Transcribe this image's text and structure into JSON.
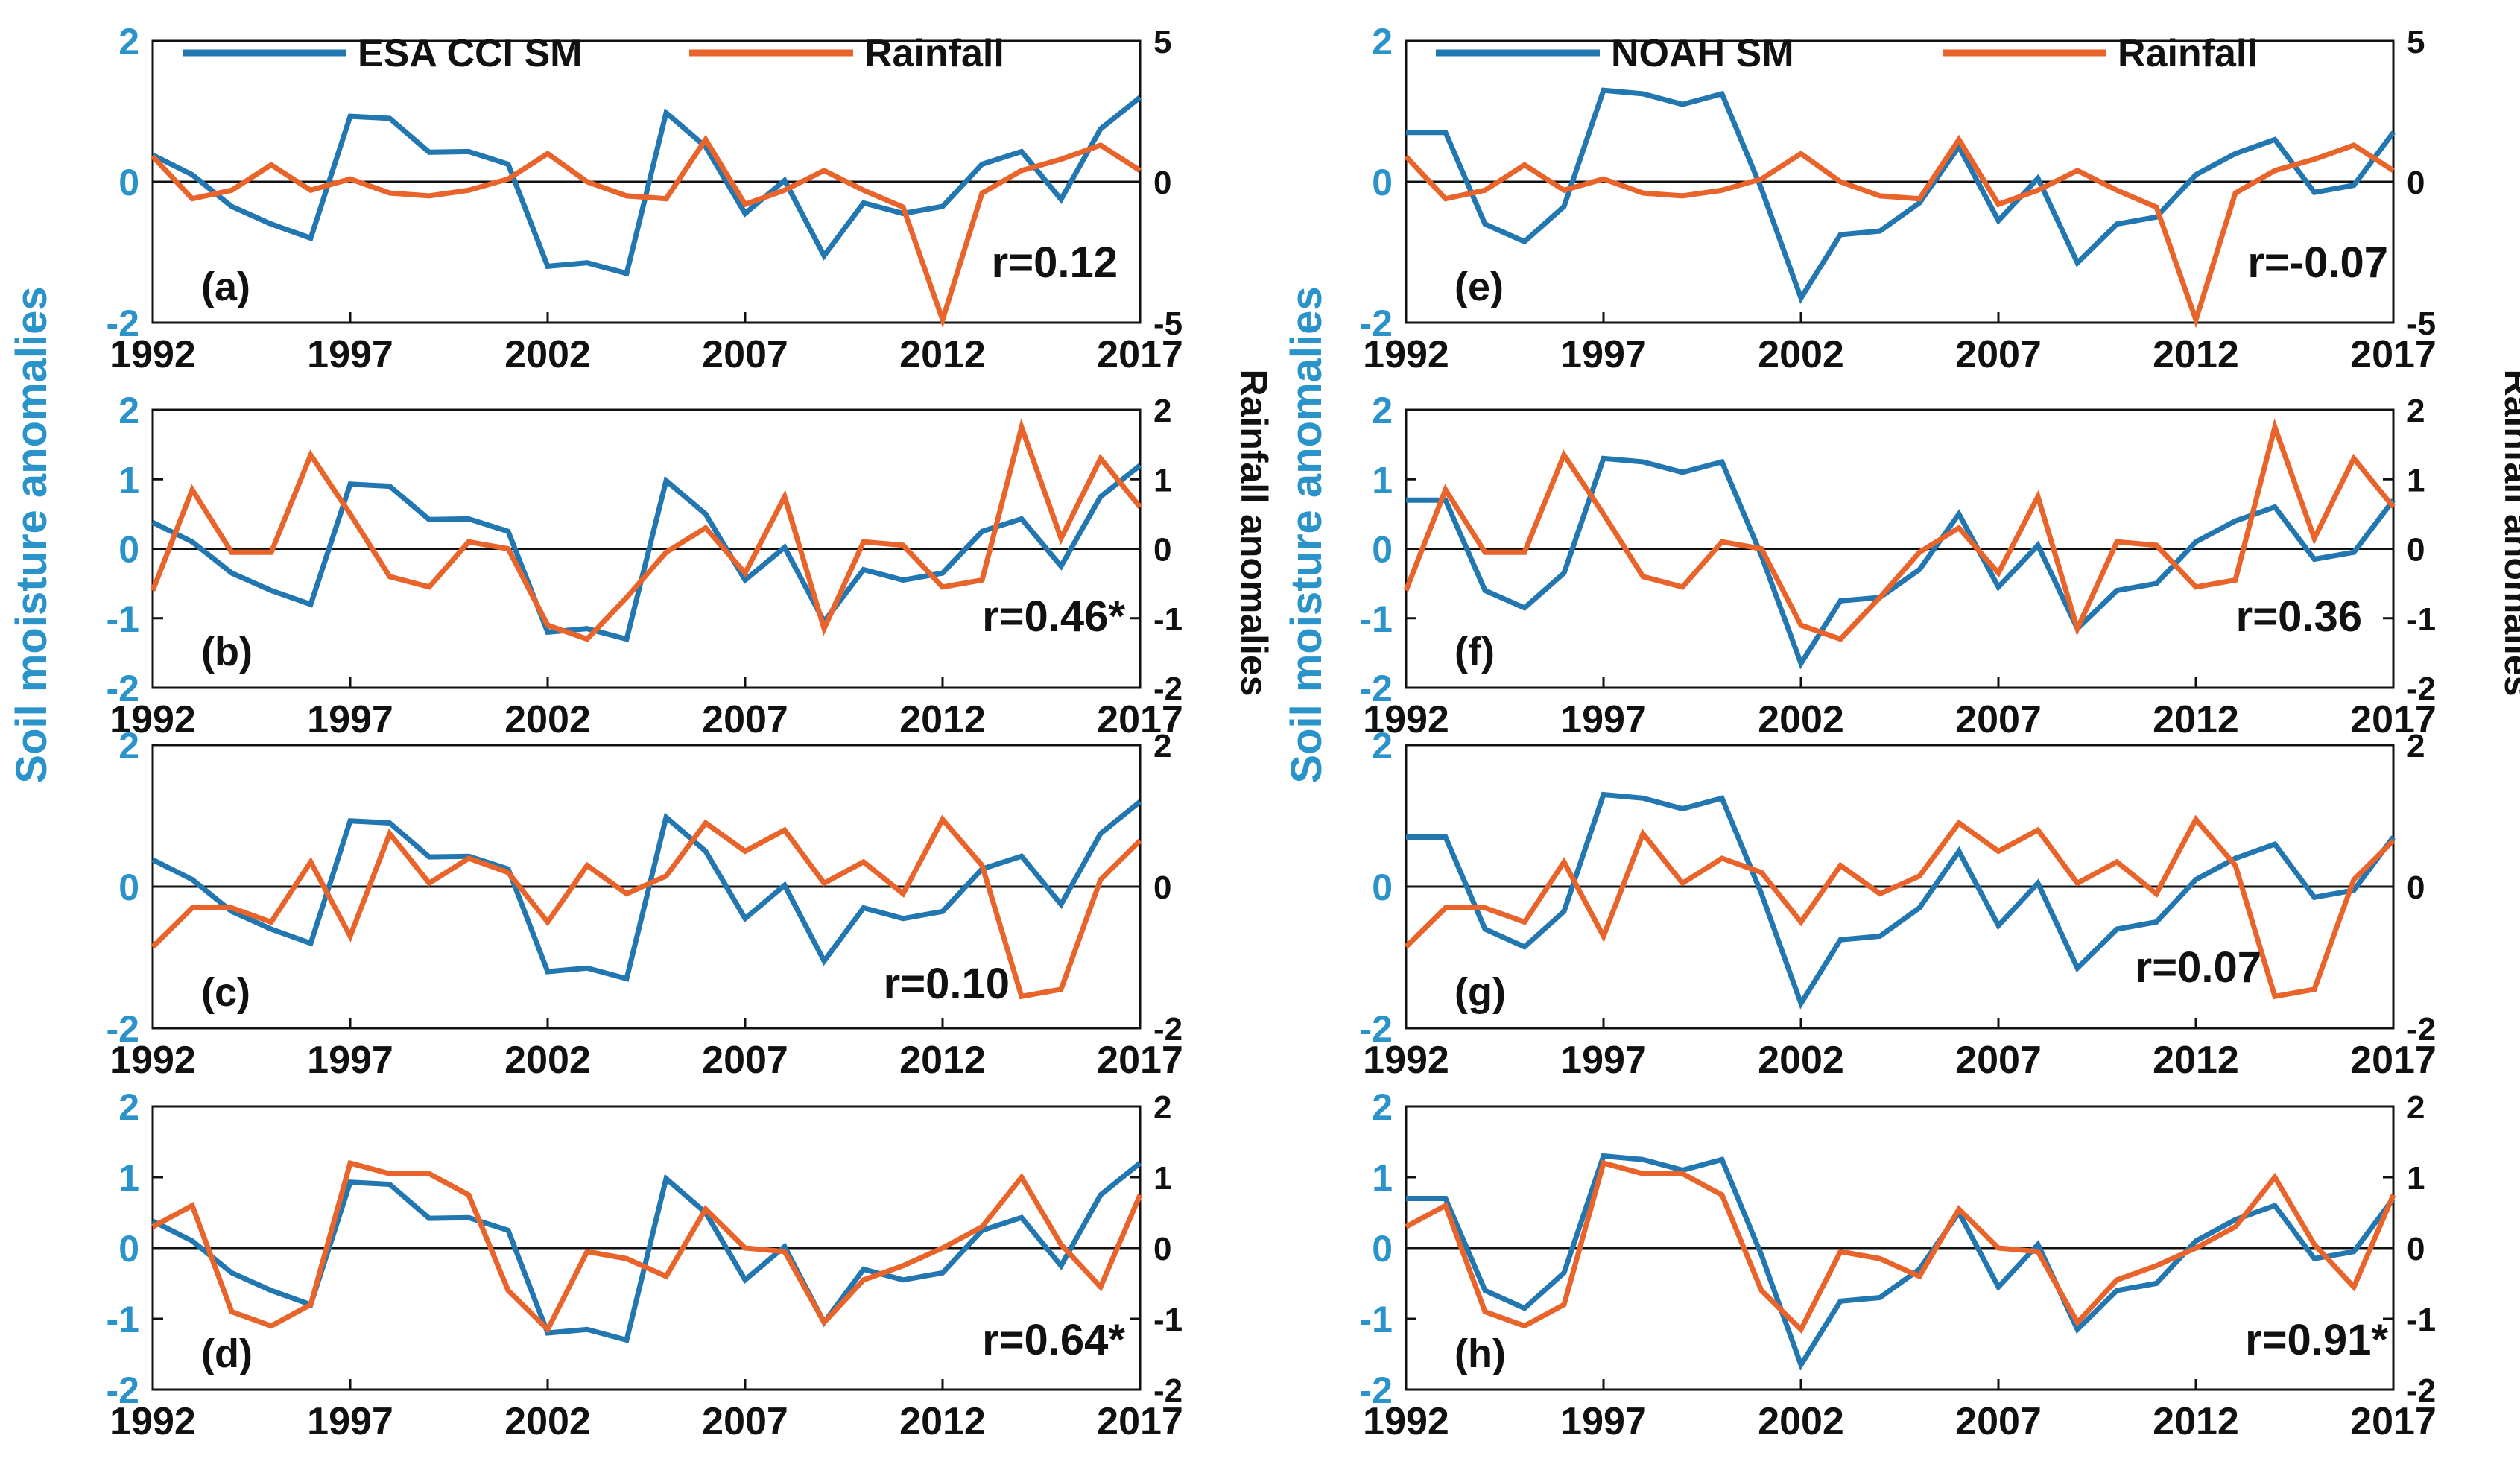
{
  "figure": {
    "left_ylabel": "Soil moisture anomalies",
    "right_ylabel": "Rainfall anomalies",
    "left_color": "#2a93c9",
    "rain_color": "#e8642a",
    "sm_color": "#2277b0"
  },
  "chart_data": [
    {
      "type": "line",
      "panel": "(a)",
      "column": "left",
      "legend": [
        "ESA CCI SM",
        "Rainfall"
      ],
      "x": [
        1992,
        1993,
        1994,
        1995,
        1996,
        1997,
        1998,
        1999,
        2000,
        2001,
        2002,
        2003,
        2004,
        2005,
        2006,
        2007,
        2008,
        2009,
        2010,
        2011,
        2012,
        2013,
        2014,
        2015,
        2016,
        2017
      ],
      "xticks": [
        1992,
        1997,
        2002,
        2007,
        2012,
        2017
      ],
      "ylim": [
        -2,
        2
      ],
      "yticks": [
        -2,
        0,
        2
      ],
      "y2lim": [
        -5,
        5
      ],
      "y2ticks": [
        -5,
        0,
        5
      ],
      "series": [
        {
          "name": "ESA CCI SM",
          "axis": "left",
          "values": [
            0.38,
            0.1,
            -0.35,
            -0.6,
            -0.8,
            0.93,
            0.9,
            0.42,
            0.43,
            0.25,
            -1.2,
            -1.15,
            -1.3,
            0.98,
            0.5,
            -0.45,
            0.02,
            -1.05,
            -0.3,
            -0.45,
            -0.35,
            0.25,
            0.43,
            -0.25,
            0.75,
            1.2
          ]
        },
        {
          "name": "Rainfall",
          "axis": "right",
          "values": [
            0.9,
            -0.6,
            -0.3,
            0.6,
            -0.3,
            0.1,
            -0.4,
            -0.5,
            -0.3,
            0.1,
            1.0,
            0.0,
            -0.5,
            -0.6,
            1.5,
            -0.8,
            -0.3,
            0.4,
            -0.3,
            -0.9,
            -4.9,
            -0.4,
            0.4,
            0.8,
            1.3,
            0.4
          ]
        }
      ],
      "annotation": "r=0.12"
    },
    {
      "type": "line",
      "panel": "(b)",
      "column": "left",
      "x": [
        1992,
        1993,
        1994,
        1995,
        1996,
        1997,
        1998,
        1999,
        2000,
        2001,
        2002,
        2003,
        2004,
        2005,
        2006,
        2007,
        2008,
        2009,
        2010,
        2011,
        2012,
        2013,
        2014,
        2015,
        2016,
        2017
      ],
      "xticks": [
        1992,
        1997,
        2002,
        2007,
        2012,
        2017
      ],
      "ylim": [
        -2,
        2
      ],
      "yticks": [
        -2,
        -1,
        0,
        1,
        2
      ],
      "y2lim": [
        -2,
        2
      ],
      "y2ticks": [
        -2,
        -1,
        0,
        1,
        2
      ],
      "series": [
        {
          "name": "ESA CCI SM",
          "axis": "left",
          "values": [
            0.38,
            0.1,
            -0.35,
            -0.6,
            -0.8,
            0.93,
            0.9,
            0.42,
            0.43,
            0.25,
            -1.2,
            -1.15,
            -1.3,
            0.98,
            0.5,
            -0.45,
            0.02,
            -1.05,
            -0.3,
            -0.45,
            -0.35,
            0.25,
            0.43,
            -0.25,
            0.75,
            1.2
          ]
        },
        {
          "name": "Rainfall",
          "axis": "right",
          "values": [
            -0.6,
            0.85,
            -0.05,
            -0.05,
            1.35,
            0.5,
            -0.4,
            -0.55,
            0.1,
            0.0,
            -1.1,
            -1.3,
            -0.7,
            -0.05,
            0.3,
            -0.35,
            0.75,
            -1.15,
            0.1,
            0.05,
            -0.55,
            -0.45,
            1.75,
            0.15,
            1.3,
            0.6
          ]
        }
      ],
      "annotation": "r=0.46*"
    },
    {
      "type": "line",
      "panel": "(c)",
      "column": "left",
      "x": [
        1992,
        1993,
        1994,
        1995,
        1996,
        1997,
        1998,
        1999,
        2000,
        2001,
        2002,
        2003,
        2004,
        2005,
        2006,
        2007,
        2008,
        2009,
        2010,
        2011,
        2012,
        2013,
        2014,
        2015,
        2016,
        2017
      ],
      "xticks": [
        1992,
        1997,
        2002,
        2007,
        2012,
        2017
      ],
      "ylim": [
        -2,
        2
      ],
      "yticks": [
        -2,
        0,
        2
      ],
      "y2lim": [
        -2,
        2
      ],
      "y2ticks": [
        -2,
        0,
        2
      ],
      "series": [
        {
          "name": "ESA CCI SM",
          "axis": "left",
          "values": [
            0.38,
            0.1,
            -0.35,
            -0.6,
            -0.8,
            0.93,
            0.9,
            0.42,
            0.43,
            0.25,
            -1.2,
            -1.15,
            -1.3,
            0.98,
            0.5,
            -0.45,
            0.02,
            -1.05,
            -0.3,
            -0.45,
            -0.35,
            0.25,
            0.43,
            -0.25,
            0.75,
            1.2
          ]
        },
        {
          "name": "Rainfall",
          "axis": "right",
          "values": [
            -0.85,
            -0.3,
            -0.3,
            -0.5,
            0.35,
            -0.7,
            0.75,
            0.05,
            0.4,
            0.2,
            -0.5,
            0.3,
            -0.1,
            0.15,
            0.9,
            0.5,
            0.8,
            0.05,
            0.35,
            -0.1,
            0.95,
            0.3,
            -1.55,
            -1.45,
            0.1,
            0.65
          ]
        }
      ],
      "annotation": "r=0.10"
    },
    {
      "type": "line",
      "panel": "(d)",
      "column": "left",
      "x": [
        1992,
        1993,
        1994,
        1995,
        1996,
        1997,
        1998,
        1999,
        2000,
        2001,
        2002,
        2003,
        2004,
        2005,
        2006,
        2007,
        2008,
        2009,
        2010,
        2011,
        2012,
        2013,
        2014,
        2015,
        2016,
        2017
      ],
      "xticks": [
        1992,
        1997,
        2002,
        2007,
        2012,
        2017
      ],
      "ylim": [
        -2,
        2
      ],
      "yticks": [
        -2,
        -1,
        0,
        1,
        2
      ],
      "y2lim": [
        -2,
        2
      ],
      "y2ticks": [
        -2,
        -1,
        0,
        1,
        2
      ],
      "series": [
        {
          "name": "ESA CCI SM",
          "axis": "left",
          "values": [
            0.38,
            0.1,
            -0.35,
            -0.6,
            -0.8,
            0.93,
            0.9,
            0.42,
            0.43,
            0.25,
            -1.2,
            -1.15,
            -1.3,
            0.98,
            0.5,
            -0.45,
            0.02,
            -1.05,
            -0.3,
            -0.45,
            -0.35,
            0.25,
            0.43,
            -0.25,
            0.75,
            1.2
          ]
        },
        {
          "name": "Rainfall",
          "axis": "right",
          "values": [
            0.3,
            0.6,
            -0.9,
            -1.1,
            -0.8,
            1.2,
            1.05,
            1.05,
            0.75,
            -0.6,
            -1.15,
            -0.05,
            -0.15,
            -0.4,
            0.55,
            0.0,
            -0.05,
            -1.05,
            -0.45,
            -0.25,
            0.0,
            0.3,
            1.0,
            0.05,
            -0.55,
            0.75
          ]
        }
      ],
      "annotation": "r=0.64*"
    },
    {
      "type": "line",
      "panel": "(e)",
      "column": "right",
      "legend": [
        "NOAH SM",
        "Rainfall"
      ],
      "x": [
        1992,
        1993,
        1994,
        1995,
        1996,
        1997,
        1998,
        1999,
        2000,
        2001,
        2002,
        2003,
        2004,
        2005,
        2006,
        2007,
        2008,
        2009,
        2010,
        2011,
        2012,
        2013,
        2014,
        2015,
        2016,
        2017
      ],
      "xticks": [
        1992,
        1997,
        2002,
        2007,
        2012,
        2017
      ],
      "ylim": [
        -2,
        2
      ],
      "yticks": [
        -2,
        0,
        2
      ],
      "y2lim": [
        -5,
        5
      ],
      "y2ticks": [
        -5,
        0,
        5
      ],
      "series": [
        {
          "name": "NOAH SM",
          "axis": "left",
          "values": [
            0.7,
            0.7,
            -0.6,
            -0.85,
            -0.35,
            1.3,
            1.25,
            1.1,
            1.25,
            -0.1,
            -1.65,
            -0.75,
            -0.7,
            -0.3,
            0.5,
            -0.55,
            0.05,
            -1.15,
            -0.6,
            -0.5,
            0.1,
            0.4,
            0.6,
            -0.15,
            -0.05,
            0.7
          ]
        },
        {
          "name": "Rainfall",
          "axis": "right",
          "values": [
            0.9,
            -0.6,
            -0.3,
            0.6,
            -0.3,
            0.1,
            -0.4,
            -0.5,
            -0.3,
            0.1,
            1.0,
            0.0,
            -0.5,
            -0.6,
            1.5,
            -0.8,
            -0.3,
            0.4,
            -0.3,
            -0.9,
            -4.9,
            -0.4,
            0.4,
            0.8,
            1.3,
            0.4
          ]
        }
      ],
      "annotation": "r=-0.07"
    },
    {
      "type": "line",
      "panel": "(f)",
      "column": "right",
      "x": [
        1992,
        1993,
        1994,
        1995,
        1996,
        1997,
        1998,
        1999,
        2000,
        2001,
        2002,
        2003,
        2004,
        2005,
        2006,
        2007,
        2008,
        2009,
        2010,
        2011,
        2012,
        2013,
        2014,
        2015,
        2016,
        2017
      ],
      "xticks": [
        1992,
        1997,
        2002,
        2007,
        2012,
        2017
      ],
      "ylim": [
        -2,
        2
      ],
      "yticks": [
        -2,
        -1,
        0,
        1,
        2
      ],
      "y2lim": [
        -2,
        2
      ],
      "y2ticks": [
        -2,
        -1,
        0,
        1,
        2
      ],
      "series": [
        {
          "name": "NOAH SM",
          "axis": "left",
          "values": [
            0.7,
            0.7,
            -0.6,
            -0.85,
            -0.35,
            1.3,
            1.25,
            1.1,
            1.25,
            -0.1,
            -1.65,
            -0.75,
            -0.7,
            -0.3,
            0.5,
            -0.55,
            0.05,
            -1.15,
            -0.6,
            -0.5,
            0.1,
            0.4,
            0.6,
            -0.15,
            -0.05,
            0.7
          ]
        },
        {
          "name": "Rainfall",
          "axis": "right",
          "values": [
            -0.6,
            0.85,
            -0.05,
            -0.05,
            1.35,
            0.5,
            -0.4,
            -0.55,
            0.1,
            0.0,
            -1.1,
            -1.3,
            -0.7,
            -0.05,
            0.3,
            -0.35,
            0.75,
            -1.15,
            0.1,
            0.05,
            -0.55,
            -0.45,
            1.75,
            0.15,
            1.3,
            0.6
          ]
        }
      ],
      "annotation": "r=0.36"
    },
    {
      "type": "line",
      "panel": "(g)",
      "column": "right",
      "x": [
        1992,
        1993,
        1994,
        1995,
        1996,
        1997,
        1998,
        1999,
        2000,
        2001,
        2002,
        2003,
        2004,
        2005,
        2006,
        2007,
        2008,
        2009,
        2010,
        2011,
        2012,
        2013,
        2014,
        2015,
        2016,
        2017
      ],
      "xticks": [
        1992,
        1997,
        2002,
        2007,
        2012,
        2017
      ],
      "ylim": [
        -2,
        2
      ],
      "yticks": [
        -2,
        0,
        2
      ],
      "y2lim": [
        -2,
        2
      ],
      "y2ticks": [
        -2,
        0,
        2
      ],
      "series": [
        {
          "name": "NOAH SM",
          "axis": "left",
          "values": [
            0.7,
            0.7,
            -0.6,
            -0.85,
            -0.35,
            1.3,
            1.25,
            1.1,
            1.25,
            -0.1,
            -1.65,
            -0.75,
            -0.7,
            -0.3,
            0.5,
            -0.55,
            0.05,
            -1.15,
            -0.6,
            -0.5,
            0.1,
            0.4,
            0.6,
            -0.15,
            -0.05,
            0.7
          ]
        },
        {
          "name": "Rainfall",
          "axis": "right",
          "values": [
            -0.85,
            -0.3,
            -0.3,
            -0.5,
            0.35,
            -0.7,
            0.75,
            0.05,
            0.4,
            0.2,
            -0.5,
            0.3,
            -0.1,
            0.15,
            0.9,
            0.5,
            0.8,
            0.05,
            0.35,
            -0.1,
            0.95,
            0.3,
            -1.55,
            -1.45,
            0.1,
            0.65
          ]
        }
      ],
      "annotation": "r=0.07"
    },
    {
      "type": "line",
      "panel": "(h)",
      "column": "right",
      "x": [
        1992,
        1993,
        1994,
        1995,
        1996,
        1997,
        1998,
        1999,
        2000,
        2001,
        2002,
        2003,
        2004,
        2005,
        2006,
        2007,
        2008,
        2009,
        2010,
        2011,
        2012,
        2013,
        2014,
        2015,
        2016,
        2017
      ],
      "xticks": [
        1992,
        1997,
        2002,
        2007,
        2012,
        2017
      ],
      "ylim": [
        -2,
        2
      ],
      "yticks": [
        -2,
        -1,
        0,
        1,
        2
      ],
      "y2lim": [
        -2,
        2
      ],
      "y2ticks": [
        -2,
        -1,
        0,
        1,
        2
      ],
      "series": [
        {
          "name": "NOAH SM",
          "axis": "left",
          "values": [
            0.7,
            0.7,
            -0.6,
            -0.85,
            -0.35,
            1.3,
            1.25,
            1.1,
            1.25,
            -0.1,
            -1.65,
            -0.75,
            -0.7,
            -0.3,
            0.5,
            -0.55,
            0.05,
            -1.15,
            -0.6,
            -0.5,
            0.1,
            0.4,
            0.6,
            -0.15,
            -0.05,
            0.7
          ]
        },
        {
          "name": "Rainfall",
          "axis": "right",
          "values": [
            0.3,
            0.6,
            -0.9,
            -1.1,
            -0.8,
            1.2,
            1.05,
            1.05,
            0.75,
            -0.6,
            -1.15,
            -0.05,
            -0.15,
            -0.4,
            0.55,
            0.0,
            -0.05,
            -1.05,
            -0.45,
            -0.25,
            0.0,
            0.3,
            1.0,
            0.05,
            -0.55,
            0.75
          ]
        }
      ],
      "annotation": "r=0.91*"
    }
  ]
}
